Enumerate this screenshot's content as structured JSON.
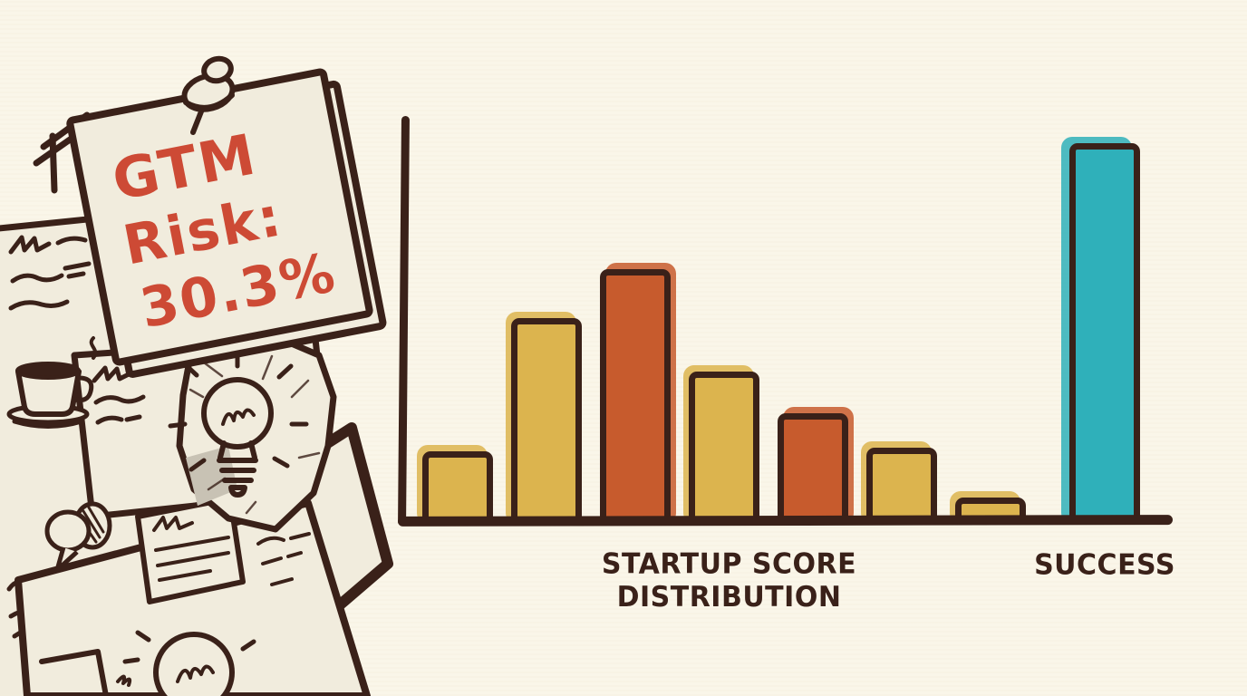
{
  "note": {
    "lines": [
      "GTM",
      "Risk:",
      "30.3%"
    ],
    "text_color": "#cd4a35",
    "paper_color": "#f1ecdd"
  },
  "chart_data": {
    "type": "bar",
    "title": "",
    "xlabel": "STARTUP SCORE DISTRIBUTION",
    "ylabel": "",
    "ylim": [
      0,
      100
    ],
    "units": "relative bar height, estimated from drawing (tallest bar = 100)",
    "grid": false,
    "legend": "none",
    "series": [
      {
        "name": "STARTUP SCORE DISTRIBUTION",
        "values": [
          19,
          54,
          67,
          40,
          29,
          20,
          7
        ],
        "colors": [
          "yellow",
          "yellow",
          "orange",
          "yellow",
          "orange",
          "yellow",
          "yellow"
        ]
      },
      {
        "name": "SUCCESS",
        "values": [
          100
        ],
        "colors": [
          "teal"
        ]
      }
    ]
  },
  "palette": {
    "background": "#faf6e9",
    "paper": "#f1ecdd",
    "outline": "#3a2119",
    "red": "#cd4a35",
    "yellow": "#dcb44e",
    "orange": "#c75b2d",
    "teal": "#2fb0ba",
    "gray_patch": "#c8c2b4"
  },
  "icons": [
    "pushpin-icon",
    "coffee-cup-icon",
    "lightbulb-icon",
    "speech-bubble-icon",
    "crumpled-paper-icon"
  ]
}
